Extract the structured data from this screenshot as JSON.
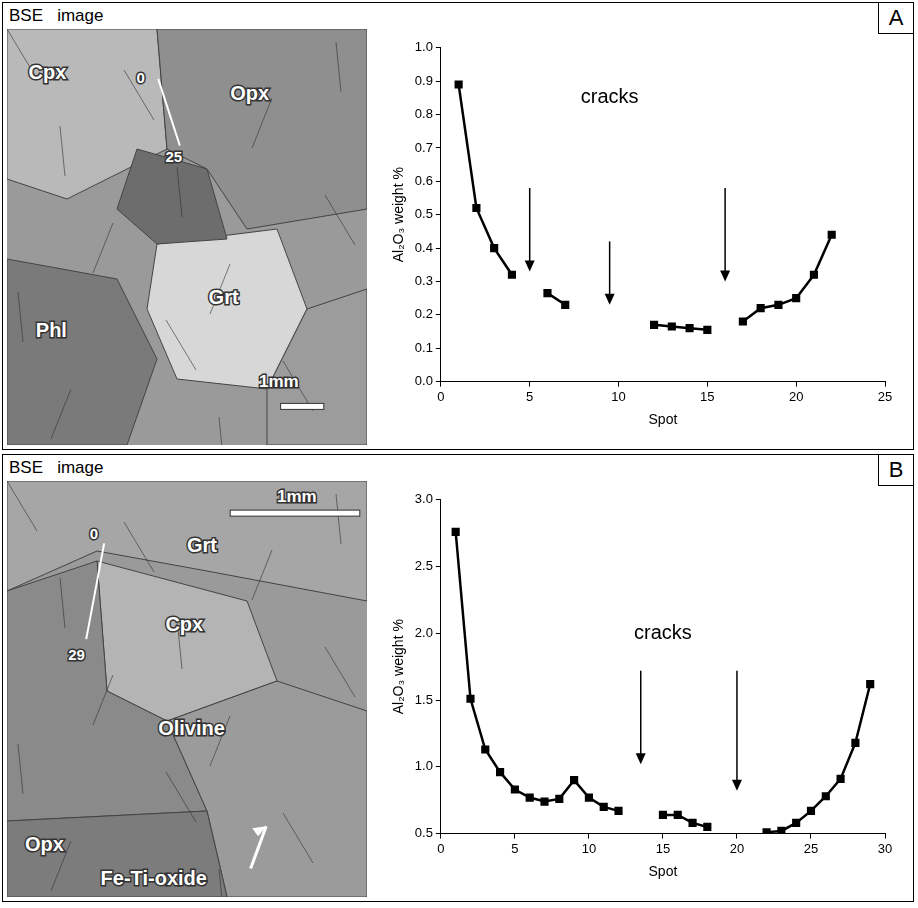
{
  "chart_data": [
    {
      "type": "line",
      "panel": "A",
      "x_label": "Spot",
      "y_label": "Al₂O₃ weight %",
      "x": [
        1,
        2,
        3,
        4,
        5,
        6,
        7,
        8,
        9,
        10,
        11,
        12,
        13,
        14,
        15,
        16,
        17,
        18,
        19,
        20,
        21,
        22
      ],
      "values": [
        0.89,
        0.52,
        0.4,
        0.32,
        null,
        0.265,
        0.23,
        null,
        null,
        null,
        null,
        0.17,
        0.165,
        0.16,
        0.155,
        null,
        0.18,
        0.22,
        0.23,
        0.25,
        0.32,
        0.44
      ],
      "color": "#000000",
      "marker": "square",
      "line_style": "solid",
      "xlim": [
        0,
        25
      ],
      "xticks": [
        0,
        5,
        10,
        15,
        20,
        25
      ],
      "ylim": [
        0,
        1.0
      ],
      "yticks": [
        {
          "value": 0,
          "label": "0.0"
        },
        0.1,
        0.2,
        0.3,
        0.4,
        0.5,
        0.6,
        0.7,
        0.8,
        0.9,
        {
          "value": 1.0,
          "label": "1.0"
        }
      ],
      "grid": false,
      "annotations": [
        {
          "text": "cracks",
          "x": 9.5,
          "y": 0.85,
          "arrows": [
            {
              "x": 5,
              "y_from": 0.58,
              "y_to": 0.33
            },
            {
              "x": 9.5,
              "y_from": 0.42,
              "y_to": 0.23
            },
            {
              "x": 16,
              "y_from": 0.58,
              "y_to": 0.3
            }
          ]
        }
      ]
    },
    {
      "type": "line",
      "panel": "B",
      "x_label": "Spot",
      "y_label": "Al₂O₃ weight %",
      "x": [
        1,
        2,
        3,
        4,
        5,
        6,
        7,
        8,
        9,
        10,
        11,
        12,
        13,
        14,
        15,
        16,
        17,
        18,
        19,
        20,
        21,
        22,
        23,
        24,
        25,
        26,
        27,
        28,
        29
      ],
      "values": [
        2.76,
        1.51,
        1.13,
        0.96,
        0.83,
        0.77,
        0.74,
        0.76,
        0.9,
        0.77,
        0.7,
        0.67,
        null,
        null,
        0.64,
        0.64,
        0.58,
        0.55,
        null,
        null,
        null,
        0.51,
        0.52,
        0.58,
        0.67,
        0.78,
        0.91,
        1.18,
        1.62
      ],
      "color": "#000000",
      "marker": "square",
      "line_style": "solid",
      "xlim": [
        0,
        30
      ],
      "xticks": [
        0,
        5,
        10,
        15,
        20,
        25,
        30
      ],
      "ylim": [
        0.5,
        3.0
      ],
      "yticks": [
        0.5,
        {
          "value": 1.0,
          "label": "1.0"
        },
        1.5,
        {
          "value": 2.0,
          "label": "2.0"
        },
        2.5,
        {
          "value": 3.0,
          "label": "3.0"
        }
      ],
      "grid": false,
      "annotations": [
        {
          "text": "cracks",
          "x": 15,
          "y": 2.0,
          "arrows": [
            {
              "x": 13.5,
              "y_from": 1.72,
              "y_to": 1.02
            },
            {
              "x": 20,
              "y_from": 1.72,
              "y_to": 0.82
            }
          ]
        }
      ]
    }
  ],
  "images": [
    {
      "panel": "A",
      "title": "BSE   image",
      "minerals": [
        "Cpx",
        "Opx",
        "Grt",
        "Phl"
      ],
      "profile": [
        "0",
        "25"
      ],
      "scale_bar": "1mm"
    },
    {
      "panel": "B",
      "title": "BSE   image",
      "minerals": [
        "Grt",
        "Cpx",
        "Olivine",
        "Opx",
        "Fe-Ti-oxide"
      ],
      "profile": [
        "0",
        "29"
      ],
      "scale_bar": "1mm"
    }
  ]
}
